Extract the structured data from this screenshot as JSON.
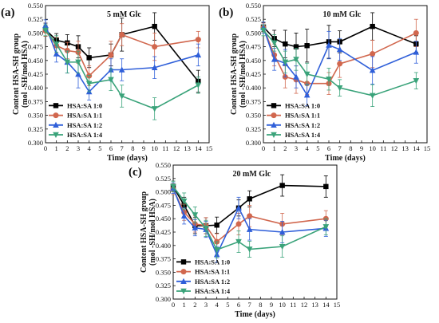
{
  "chart_data": [
    {
      "type": "line",
      "panel_label": "(a)",
      "title": "5 mM Glc",
      "xlabel": "Time (days)",
      "ylabel": "Content HSA-SH group",
      "ylabel2": "(mol -SH/mol HSA)",
      "x": [
        0,
        1,
        2,
        3,
        4,
        6,
        7,
        10,
        14
      ],
      "xlim": [
        0,
        15
      ],
      "ylim": [
        0.3,
        0.55
      ],
      "xticks": [
        "0",
        "1",
        "2",
        "3",
        "4",
        "5",
        "6",
        "7",
        "8",
        "9",
        "10",
        "11",
        "12",
        "13",
        "14",
        "15"
      ],
      "yticks": [
        "0.300",
        "0.325",
        "0.350",
        "0.375",
        "0.400",
        "0.425",
        "0.450",
        "0.475",
        "0.500",
        "0.525",
        "0.550"
      ],
      "legend_position": "bottom-left",
      "series": [
        {
          "name": "HSA:SA 1:0",
          "color": "#000000",
          "marker": "square",
          "values": [
            0.506,
            0.487,
            0.482,
            0.475,
            0.455,
            0.46,
            0.497,
            0.512,
            0.412
          ],
          "errors": [
            0.012,
            0.012,
            0.015,
            0.02,
            0.018,
            0.02,
            0.03,
            0.025,
            0.02
          ]
        },
        {
          "name": "HSA:SA 1:1",
          "color": "#d1674e",
          "marker": "circle",
          "values": [
            0.504,
            0.477,
            0.468,
            0.465,
            0.422,
            0.46,
            0.497,
            0.475,
            0.488
          ],
          "errors": [
            0.01,
            0.015,
            0.015,
            0.02,
            0.018,
            0.025,
            0.02,
            0.025,
            0.015
          ]
        },
        {
          "name": "HSA:SA 1:2",
          "color": "#2f5fd9",
          "marker": "triangle-up",
          "values": [
            0.514,
            0.462,
            0.447,
            0.425,
            0.393,
            0.433,
            0.433,
            0.437,
            0.46
          ],
          "errors": [
            0.01,
            0.015,
            0.02,
            0.025,
            0.015,
            0.02,
            0.02,
            0.02,
            0.02
          ]
        },
        {
          "name": "HSA:SA 1:4",
          "color": "#3aa37a",
          "marker": "triangle-down",
          "values": [
            0.505,
            0.48,
            0.447,
            0.447,
            0.408,
            0.415,
            0.385,
            0.362,
            0.405
          ],
          "errors": [
            0.01,
            0.015,
            0.02,
            0.02,
            0.015,
            0.02,
            0.02,
            0.02,
            0.015
          ]
        }
      ]
    },
    {
      "type": "line",
      "panel_label": "(b)",
      "title": "10 mM Glc",
      "xlabel": "Time (days)",
      "ylabel": "Content HSA-SH group",
      "ylabel2": "(mol -SH/mol HSA)",
      "x": [
        0,
        1,
        2,
        3,
        4,
        6,
        7,
        10,
        14
      ],
      "xlim": [
        0,
        15
      ],
      "ylim": [
        0.3,
        0.55
      ],
      "xticks": [
        "0",
        "1",
        "2",
        "3",
        "4",
        "5",
        "6",
        "7",
        "8",
        "9",
        "10",
        "11",
        "12",
        "13",
        "14",
        "15"
      ],
      "yticks": [
        "0.300",
        "0.325",
        "0.350",
        "0.375",
        "0.400",
        "0.425",
        "0.450",
        "0.475",
        "0.500",
        "0.525",
        "0.550"
      ],
      "legend_position": "bottom-left",
      "series": [
        {
          "name": "HSA:SA 1:0",
          "color": "#000000",
          "marker": "square",
          "values": [
            0.511,
            0.49,
            0.48,
            0.475,
            0.477,
            0.484,
            0.484,
            0.512,
            0.48
          ],
          "errors": [
            0.008,
            0.015,
            0.025,
            0.025,
            0.03,
            0.03,
            0.02,
            0.025,
            0.015
          ]
        },
        {
          "name": "HSA:SA 1:1",
          "color": "#d1674e",
          "marker": "circle",
          "values": [
            0.51,
            0.46,
            0.42,
            0.415,
            0.408,
            0.408,
            0.444,
            0.462,
            0.5
          ],
          "errors": [
            0.008,
            0.02,
            0.02,
            0.025,
            0.02,
            0.02,
            0.025,
            0.025,
            0.025
          ]
        },
        {
          "name": "HSA:SA 1:2",
          "color": "#2f5fd9",
          "marker": "triangle-up",
          "values": [
            0.51,
            0.452,
            0.445,
            0.42,
            0.387,
            0.478,
            0.47,
            0.432,
            0.465
          ],
          "errors": [
            0.01,
            0.02,
            0.025,
            0.02,
            0.02,
            0.025,
            0.02,
            0.025,
            0.02
          ]
        },
        {
          "name": "HSA:SA 1:4",
          "color": "#3aa37a",
          "marker": "triangle-down",
          "values": [
            0.505,
            0.482,
            0.447,
            0.452,
            0.425,
            0.416,
            0.4,
            0.386,
            0.413
          ],
          "errors": [
            0.01,
            0.015,
            0.02,
            0.02,
            0.02,
            0.02,
            0.015,
            0.02,
            0.015
          ]
        }
      ]
    },
    {
      "type": "line",
      "panel_label": "(c)",
      "title": "20 mM Glc",
      "xlabel": "Time (days)",
      "ylabel": "Content HSA-SH group",
      "ylabel2": "(mol -SH/mol HSA)",
      "x": [
        0,
        1,
        2,
        3,
        4,
        6,
        7,
        10,
        14
      ],
      "xlim": [
        0,
        15
      ],
      "ylim": [
        0.3,
        0.55
      ],
      "xticks": [
        "0",
        "1",
        "2",
        "3",
        "4",
        "5",
        "6",
        "7",
        "8",
        "9",
        "10",
        "11",
        "12",
        "13",
        "14",
        "15"
      ],
      "yticks": [
        "0.300",
        "0.325",
        "0.350",
        "0.375",
        "0.400",
        "0.425",
        "0.450",
        "0.475",
        "0.500",
        "0.525",
        "0.550"
      ],
      "legend_position": "bottom-left",
      "series": [
        {
          "name": "HSA:SA 1:0",
          "color": "#000000",
          "marker": "square",
          "values": [
            0.51,
            0.475,
            0.437,
            0.437,
            0.438,
            0.47,
            0.487,
            0.512,
            0.51
          ],
          "errors": [
            0.01,
            0.015,
            0.015,
            0.015,
            0.015,
            0.015,
            0.015,
            0.02,
            0.02
          ]
        },
        {
          "name": "HSA:SA 1:1",
          "color": "#d1674e",
          "marker": "circle",
          "values": [
            0.505,
            0.462,
            0.44,
            0.437,
            0.407,
            0.44,
            0.455,
            0.44,
            0.45
          ],
          "errors": [
            0.01,
            0.015,
            0.015,
            0.015,
            0.015,
            0.02,
            0.02,
            0.02,
            0.015
          ]
        },
        {
          "name": "HSA:SA 1:2",
          "color": "#2f5fd9",
          "marker": "triangle-up",
          "values": [
            0.507,
            0.455,
            0.433,
            0.43,
            0.383,
            0.47,
            0.43,
            0.425,
            0.432
          ],
          "errors": [
            0.01,
            0.015,
            0.015,
            0.015,
            0.015,
            0.02,
            0.02,
            0.02,
            0.015
          ]
        },
        {
          "name": "HSA:SA 1:4",
          "color": "#3aa37a",
          "marker": "triangle-down",
          "values": [
            0.51,
            0.483,
            0.457,
            0.432,
            0.392,
            0.407,
            0.393,
            0.398,
            0.435
          ],
          "errors": [
            0.01,
            0.015,
            0.015,
            0.015,
            0.015,
            0.02,
            0.015,
            0.02,
            0.015
          ]
        }
      ]
    }
  ]
}
